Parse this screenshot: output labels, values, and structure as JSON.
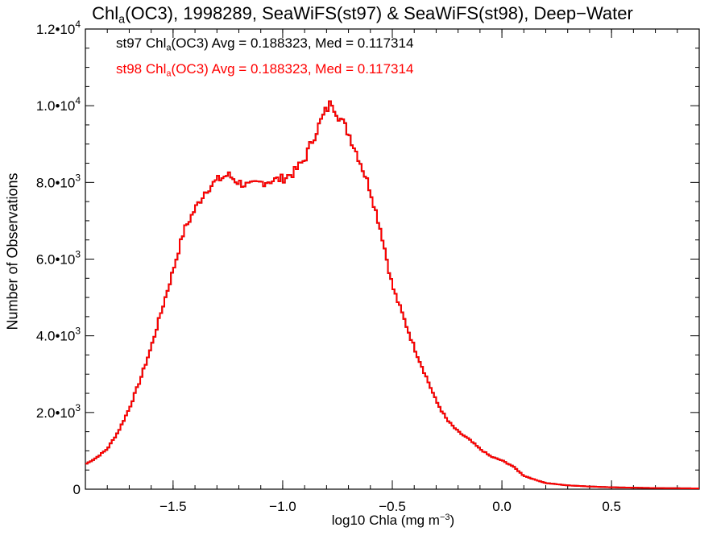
{
  "chart_data": {
    "type": "line",
    "title": {
      "prefix": "Chl",
      "sub": "a",
      "suffix": "(OC3), 1998289, SeaWiFS(st97) & SeaWiFS(st98), Deep−Water"
    },
    "xlabel": {
      "text": "log10 Chla (mg m",
      "sup": "−3",
      "close": ")"
    },
    "ylabel": "Number of Observations",
    "xlim": [
      -1.9,
      0.9
    ],
    "ylim": [
      0,
      12000
    ],
    "x_ticks": [
      {
        "value": -1.5,
        "label": "−1.5"
      },
      {
        "value": -1.0,
        "label": "−1.0"
      },
      {
        "value": -0.5,
        "label": "−0.5"
      },
      {
        "value": 0.0,
        "label": "0.0"
      },
      {
        "value": 0.5,
        "label": "0.5"
      }
    ],
    "y_ticks": [
      {
        "value": 0,
        "mant": "0",
        "exp": ""
      },
      {
        "value": 2000,
        "mant": "2.0•10",
        "exp": "3"
      },
      {
        "value": 4000,
        "mant": "4.0•10",
        "exp": "3"
      },
      {
        "value": 6000,
        "mant": "6.0•10",
        "exp": "3"
      },
      {
        "value": 8000,
        "mant": "8.0•10",
        "exp": "3"
      },
      {
        "value": 10000,
        "mant": "1.0•10",
        "exp": "4"
      },
      {
        "value": 12000,
        "mant": "1.2•10",
        "exp": "4"
      }
    ],
    "grid": false,
    "legend_position": "top-left",
    "series": [
      {
        "name_prefix": "st97 Chl",
        "name_sub": "a",
        "name_suffix": "(OC3) Avg = 0.188323, Med = 0.117314",
        "color": "#000000"
      },
      {
        "name_prefix": "st98 Chl",
        "name_sub": "a",
        "name_suffix": "(OC3) Avg = 0.188323, Med = 0.117314",
        "color": "#ff0000"
      }
    ],
    "x": [
      -1.9,
      -1.85,
      -1.8,
      -1.75,
      -1.7,
      -1.65,
      -1.6,
      -1.55,
      -1.5,
      -1.45,
      -1.4,
      -1.35,
      -1.3,
      -1.25,
      -1.2,
      -1.15,
      -1.1,
      -1.05,
      -1.0,
      -0.95,
      -0.9,
      -0.85,
      -0.8,
      -0.775,
      -0.75,
      -0.7,
      -0.65,
      -0.6,
      -0.55,
      -0.5,
      -0.45,
      -0.4,
      -0.35,
      -0.3,
      -0.25,
      -0.2,
      -0.15,
      -0.1,
      -0.05,
      0.0,
      0.05,
      0.1,
      0.15,
      0.2,
      0.3,
      0.4,
      0.5,
      0.6,
      0.7,
      0.8,
      0.9
    ],
    "values": [
      650,
      820,
      1050,
      1500,
      2100,
      2850,
      3700,
      4700,
      5700,
      6750,
      7300,
      7800,
      8050,
      8200,
      8000,
      7900,
      8000,
      8050,
      8100,
      8250,
      8600,
      9300,
      9900,
      10100,
      9800,
      9300,
      8600,
      7800,
      6700,
      5300,
      4500,
      3700,
      3000,
      2300,
      1800,
      1500,
      1300,
      1050,
      850,
      750,
      600,
      350,
      250,
      160,
      100,
      70,
      50,
      40,
      30,
      25,
      20
    ]
  }
}
